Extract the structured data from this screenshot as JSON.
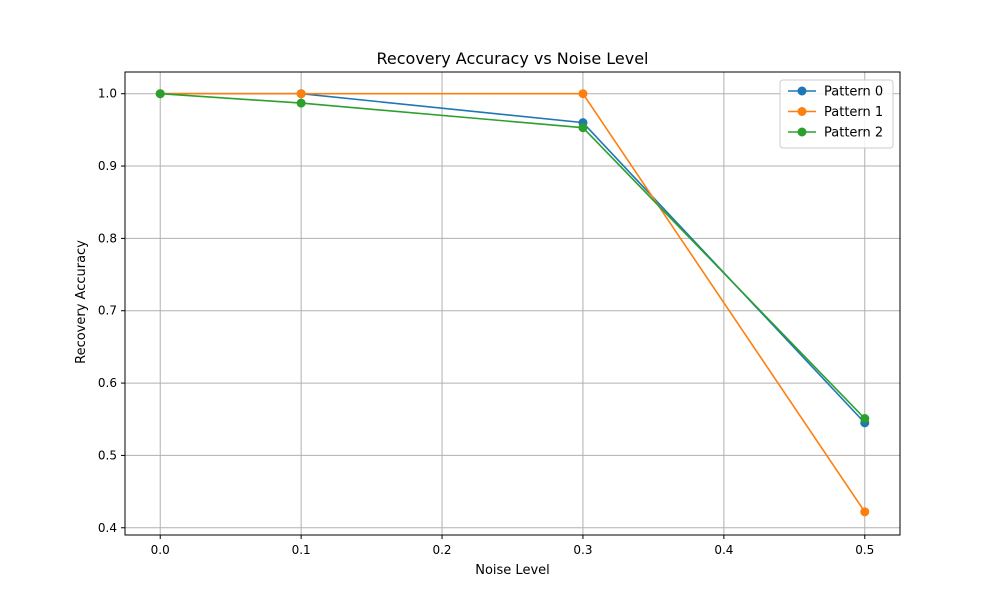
{
  "chart_data": {
    "type": "line",
    "title": "Recovery Accuracy vs Noise Level",
    "xlabel": "Noise Level",
    "ylabel": "Recovery Accuracy",
    "xlim": [
      -0.025,
      0.525
    ],
    "ylim": [
      0.39,
      1.03
    ],
    "xticks": [
      0.0,
      0.1,
      0.2,
      0.3,
      0.4,
      0.5
    ],
    "xtick_labels": [
      "0.0",
      "0.1",
      "0.2",
      "0.3",
      "0.4",
      "0.5"
    ],
    "yticks": [
      0.4,
      0.5,
      0.6,
      0.7,
      0.8,
      0.9,
      1.0
    ],
    "ytick_labels": [
      "0.4",
      "0.5",
      "0.6",
      "0.7",
      "0.8",
      "0.9",
      "1.0"
    ],
    "grid": true,
    "legend_position": "top-right",
    "x": [
      0.0,
      0.1,
      0.3,
      0.5
    ],
    "series": [
      {
        "name": "Pattern 0",
        "color": "#1f77b4",
        "values": [
          1.0,
          1.0,
          0.96,
          0.545
        ]
      },
      {
        "name": "Pattern 1",
        "color": "#ff7f0e",
        "values": [
          1.0,
          1.0,
          1.0,
          0.422
        ]
      },
      {
        "name": "Pattern 2",
        "color": "#2ca02c",
        "values": [
          1.0,
          0.987,
          0.953,
          0.551
        ]
      }
    ]
  }
}
